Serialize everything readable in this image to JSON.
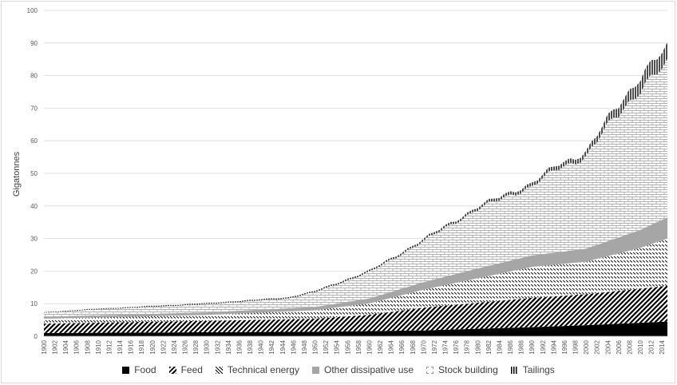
{
  "chart_data": {
    "type": "area",
    "stacked": true,
    "title": "",
    "xlabel": "",
    "ylabel": "Gigatonnes",
    "ylim": [
      0,
      100
    ],
    "yticks": [
      0,
      10,
      20,
      30,
      40,
      50,
      60,
      70,
      80,
      90,
      100
    ],
    "xlim": [
      1900,
      2015
    ],
    "xtick_step": 2,
    "grid": "horizontal",
    "legend": "bottom",
    "series": [
      {
        "name": "Food",
        "pattern": "solid",
        "color": "#000000",
        "points": [
          [
            1900,
            1.0
          ],
          [
            1950,
            1.4
          ],
          [
            1970,
            1.8
          ],
          [
            1990,
            2.8
          ],
          [
            2000,
            3.4
          ],
          [
            2015,
            4.5
          ]
        ]
      },
      {
        "name": "Feed",
        "pattern": "diagonal",
        "color": "#000000",
        "points": [
          [
            1900,
            2.9
          ],
          [
            1930,
            3.5
          ],
          [
            1950,
            4.0
          ],
          [
            1960,
            5.0
          ],
          [
            1970,
            7.0
          ],
          [
            1980,
            8.0
          ],
          [
            1990,
            9.0
          ],
          [
            2000,
            9.5
          ],
          [
            2015,
            11.0
          ]
        ]
      },
      {
        "name": "Technical energy",
        "pattern": "dashes",
        "color": "#000000",
        "points": [
          [
            1900,
            1.5
          ],
          [
            1930,
            1.8
          ],
          [
            1950,
            2.6
          ],
          [
            1960,
            3.5
          ],
          [
            1970,
            5.5
          ],
          [
            1980,
            7.5
          ],
          [
            1990,
            9.5
          ],
          [
            2000,
            10.0
          ],
          [
            2010,
            12.5
          ],
          [
            2015,
            14.5
          ]
        ]
      },
      {
        "name": "Other dissipative use",
        "pattern": "solid-grey",
        "color": "#a6a6a6",
        "points": [
          [
            1900,
            0.6
          ],
          [
            1930,
            0.8
          ],
          [
            1950,
            1.0
          ],
          [
            1960,
            1.5
          ],
          [
            1970,
            2.3
          ],
          [
            1980,
            3.0
          ],
          [
            1990,
            3.5
          ],
          [
            2000,
            4.0
          ],
          [
            2010,
            5.5
          ],
          [
            2015,
            6.5
          ]
        ]
      },
      {
        "name": "Stock building",
        "pattern": "brick",
        "color": "#808080",
        "points": [
          [
            1900,
            1.2
          ],
          [
            1910,
            1.8
          ],
          [
            1930,
            2.5
          ],
          [
            1945,
            3.0
          ],
          [
            1950,
            4.5
          ],
          [
            1960,
            8.0
          ],
          [
            1970,
            12.5
          ],
          [
            1974,
            15.0
          ],
          [
            1980,
            18.0
          ],
          [
            1985,
            20.0
          ],
          [
            1990,
            21.0
          ],
          [
            1995,
            26.0
          ],
          [
            2000,
            28.0
          ],
          [
            2005,
            37.0
          ],
          [
            2010,
            43.0
          ],
          [
            2015,
            47.0
          ]
        ]
      },
      {
        "name": "Tailings",
        "pattern": "vertical",
        "color": "#000000",
        "points": [
          [
            1900,
            0.2
          ],
          [
            1950,
            0.4
          ],
          [
            1970,
            0.6
          ],
          [
            1990,
            1.0
          ],
          [
            2000,
            1.5
          ],
          [
            2005,
            2.5
          ],
          [
            2010,
            4.0
          ],
          [
            2015,
            5.0
          ]
        ]
      }
    ]
  }
}
